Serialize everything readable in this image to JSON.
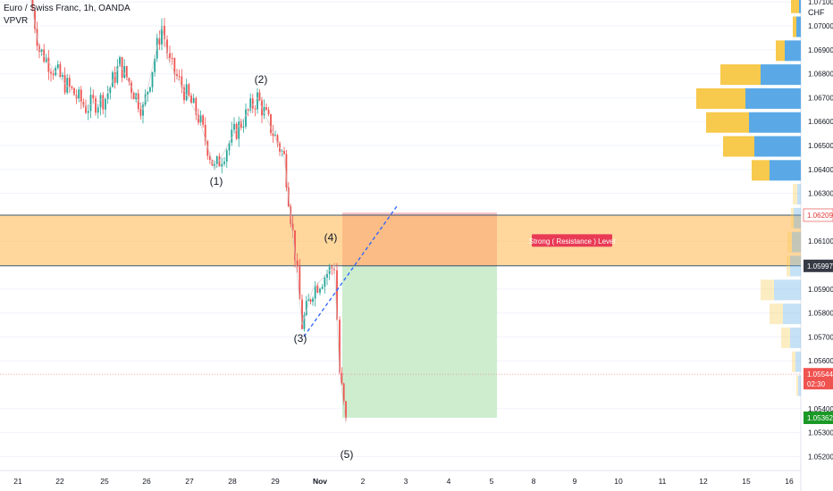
{
  "legend": {
    "symbol": "Euro / Swiss Franc, 1h, OANDA",
    "indicator": "VPVR"
  },
  "axis": {
    "currency": "CHF",
    "price_ticks": [
      "1.07100",
      "1.07000",
      "1.06900",
      "1.06800",
      "1.06700",
      "1.06600",
      "1.06500",
      "1.06400",
      "1.06300",
      "1.06100",
      "1.05900",
      "1.05800",
      "1.05700",
      "1.05600",
      "1.05400",
      "1.05300",
      "1.05200"
    ],
    "date_ticks": [
      "21",
      "22",
      "25",
      "26",
      "27",
      "28",
      "29",
      "Nov",
      "2",
      "3",
      "4",
      "5",
      "8",
      "9",
      "10",
      "11",
      "12",
      "15",
      "16"
    ]
  },
  "price_labels": {
    "level_high": "1.06209",
    "level_low": "1.05997",
    "current": "1.05544",
    "countdown": "02:30",
    "target": "1.05362"
  },
  "colors": {
    "bull": "#26a69a",
    "bear": "#ef5350",
    "zone": "#ffb74d",
    "stop": "#f8b8bf",
    "target": "#c8ebc9",
    "vp_up": "#5aa9e6",
    "vp_down": "#f7c94c"
  },
  "chart_data": {
    "type": "candlestick",
    "instrument": "Euro / Swiss Franc",
    "timeframe": "1h",
    "ylim": [
      1.0518,
      1.0712
    ],
    "path_points": [
      {
        "x": "Oct 21",
        "y": 1.0712
      },
      {
        "x": "Oct 21",
        "y": 1.069
      },
      {
        "x": "Oct 22",
        "y": 1.0677
      },
      {
        "x": "Oct 22",
        "y": 1.0666
      },
      {
        "x": "Oct 25",
        "y": 1.067
      },
      {
        "x": "Oct 25",
        "y": 1.0684
      },
      {
        "x": "Oct 26",
        "y": 1.0665
      },
      {
        "x": "Oct 26",
        "y": 1.07
      },
      {
        "x": "Oct 26",
        "y": 1.0684
      },
      {
        "x": "Oct 27",
        "y": 1.0662
      },
      {
        "x": "Oct 27",
        "y": 1.064
      },
      {
        "x": "Oct 28",
        "y": 1.0655
      },
      {
        "x": "Oct 28",
        "y": 1.067
      },
      {
        "x": "Oct 29",
        "y": 1.0645
      },
      {
        "x": "Oct 29",
        "y": 1.0605
      },
      {
        "x": "Oct 29",
        "y": 1.0575
      },
      {
        "x": "Oct 29",
        "y": 1.059
      },
      {
        "x": "Nov 1",
        "y": 1.06
      },
      {
        "x": "Nov 1",
        "y": 1.0555
      },
      {
        "x": "Nov 1",
        "y": 1.0534
      }
    ],
    "wave_labels": [
      {
        "label": "(1)",
        "x": "Oct 27",
        "y": 1.064
      },
      {
        "label": "(2)",
        "x": "Oct 28",
        "y": 1.067
      },
      {
        "label": "(3)",
        "x": "Oct 29",
        "y": 1.0575
      },
      {
        "label": "(4)",
        "x": "Nov 1",
        "y": 1.06
      },
      {
        "label": "(5)",
        "x": "Nov 1",
        "y": 1.0534
      }
    ],
    "resistance_zone": {
      "label": "Strong ( Resistance ) Level",
      "from": 1.05997,
      "to": 1.06209
    },
    "trade": {
      "entry": 1.05997,
      "stop": 1.0622,
      "target": 1.05362
    },
    "trendline": {
      "from": {
        "x": "Oct 29",
        "y": 1.0573
      },
      "to": {
        "x": "Nov 2",
        "y": 1.0626
      }
    },
    "volume_profile": [
      {
        "price": 1.071,
        "up": 2,
        "down": 9
      },
      {
        "price": 1.07,
        "up": 5,
        "down": 4
      },
      {
        "price": 1.069,
        "up": 18,
        "down": 10
      },
      {
        "price": 1.068,
        "up": 45,
        "down": 45
      },
      {
        "price": 1.067,
        "up": 62,
        "down": 55
      },
      {
        "price": 1.066,
        "up": 58,
        "down": 48
      },
      {
        "price": 1.065,
        "up": 52,
        "down": 35
      },
      {
        "price": 1.064,
        "up": 35,
        "down": 20
      },
      {
        "price": 1.063,
        "up": 4,
        "down": 5
      },
      {
        "price": 1.062,
        "up": 8,
        "down": 3
      },
      {
        "price": 1.061,
        "up": 10,
        "down": 5
      },
      {
        "price": 1.06,
        "up": 12,
        "down": 4
      },
      {
        "price": 1.059,
        "up": 30,
        "down": 15
      },
      {
        "price": 1.058,
        "up": 20,
        "down": 15
      },
      {
        "price": 1.057,
        "up": 12,
        "down": 10
      },
      {
        "price": 1.056,
        "up": 6,
        "down": 4
      },
      {
        "price": 1.055,
        "up": 3,
        "down": 2
      }
    ]
  }
}
